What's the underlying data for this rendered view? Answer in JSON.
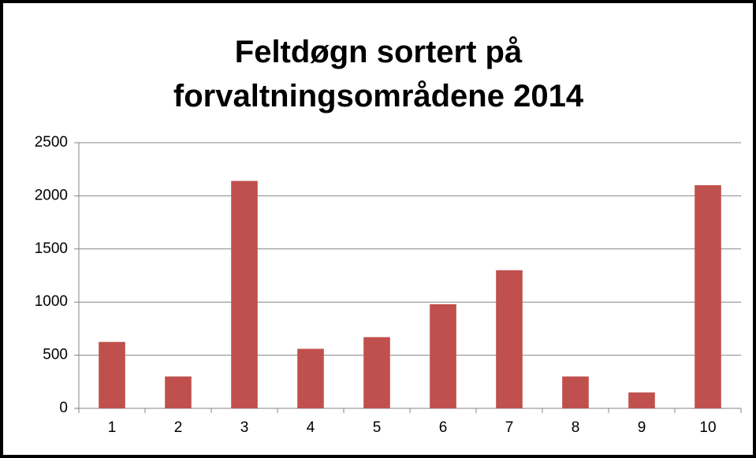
{
  "chart_data": {
    "type": "bar",
    "title": "Feltdøgn sortert på forvaltningsområdene 2014",
    "categories": [
      "1",
      "2",
      "3",
      "4",
      "5",
      "6",
      "7",
      "8",
      "9",
      "10"
    ],
    "values": [
      625,
      300,
      2140,
      560,
      670,
      980,
      1300,
      300,
      150,
      2100
    ],
    "color": "#c0504d",
    "ylim": [
      0,
      2500
    ],
    "yticks": [
      0,
      500,
      1000,
      1500,
      2000,
      2500
    ],
    "grid": true
  }
}
